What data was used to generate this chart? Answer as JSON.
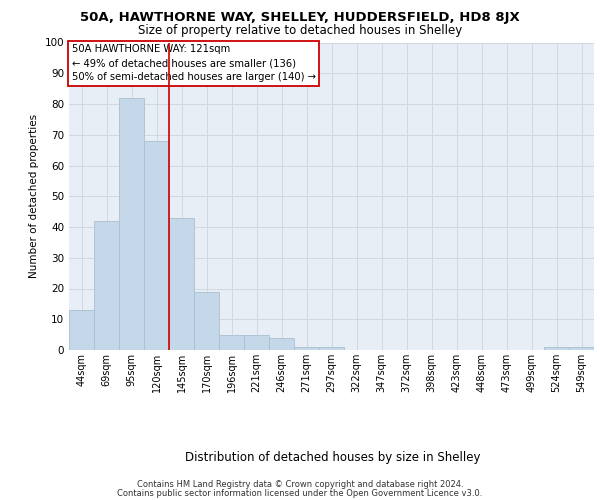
{
  "title1": "50A, HAWTHORNE WAY, SHELLEY, HUDDERSFIELD, HD8 8JX",
  "title2": "Size of property relative to detached houses in Shelley",
  "xlabel": "Distribution of detached houses by size in Shelley",
  "ylabel": "Number of detached properties",
  "categories": [
    "44sqm",
    "69sqm",
    "95sqm",
    "120sqm",
    "145sqm",
    "170sqm",
    "196sqm",
    "221sqm",
    "246sqm",
    "271sqm",
    "297sqm",
    "322sqm",
    "347sqm",
    "372sqm",
    "398sqm",
    "423sqm",
    "448sqm",
    "473sqm",
    "499sqm",
    "524sqm",
    "549sqm"
  ],
  "values": [
    13,
    42,
    82,
    68,
    43,
    19,
    5,
    5,
    4,
    1,
    1,
    0,
    0,
    0,
    0,
    0,
    0,
    0,
    0,
    1,
    1
  ],
  "bar_color": "#c5d8ea",
  "bar_edge_color": "#aabfcf",
  "grid_color": "#d0d8e0",
  "background_color": "#e8eef5",
  "vline_color": "#cc0000",
  "annotation_text": "50A HAWTHORNE WAY: 121sqm\n← 49% of detached houses are smaller (136)\n50% of semi-detached houses are larger (140) →",
  "annotation_box_color": "#ffffff",
  "annotation_box_edge": "#cc0000",
  "ylim": [
    0,
    100
  ],
  "yticks": [
    0,
    10,
    20,
    30,
    40,
    50,
    60,
    70,
    80,
    90,
    100
  ],
  "footer1": "Contains HM Land Registry data © Crown copyright and database right 2024.",
  "footer2": "Contains public sector information licensed under the Open Government Licence v3.0."
}
